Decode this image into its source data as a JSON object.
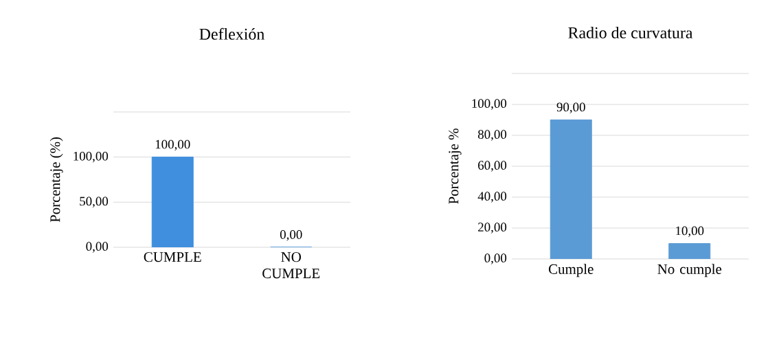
{
  "chart_data": [
    {
      "type": "bar",
      "title": "Deflexión",
      "ylabel": "Porcentaje (%)",
      "categories": [
        "CUMPLE",
        "NO CUMPLE"
      ],
      "values": [
        100,
        0
      ],
      "color": "#3f8fde",
      "value_labels": [
        "100,00",
        "0,00"
      ],
      "ylim": [
        0,
        150
      ],
      "yticks": [
        {
          "value": 0,
          "label": "0,00"
        },
        {
          "value": 50,
          "label": "50,00"
        },
        {
          "value": 100,
          "label": "100,00"
        },
        {
          "value": 150,
          "label": null
        }
      ],
      "grid": "y"
    },
    {
      "type": "bar",
      "title": "Radio de curvatura",
      "ylabel": "Porcentaje %",
      "categories": [
        "Cumple",
        "No cumple"
      ],
      "values": [
        90,
        10
      ],
      "color": "#5b9bd5",
      "value_labels": [
        "90,00",
        "10,00"
      ],
      "ylim": [
        0,
        120
      ],
      "yticks": [
        {
          "value": 0,
          "label": "0,00"
        },
        {
          "value": 20,
          "label": "20,00"
        },
        {
          "value": 40,
          "label": "40,00"
        },
        {
          "value": 60,
          "label": "60,00"
        },
        {
          "value": 80,
          "label": "80,00"
        },
        {
          "value": 100,
          "label": "100,00"
        },
        {
          "value": 120,
          "label": null
        }
      ],
      "grid": "y"
    }
  ]
}
